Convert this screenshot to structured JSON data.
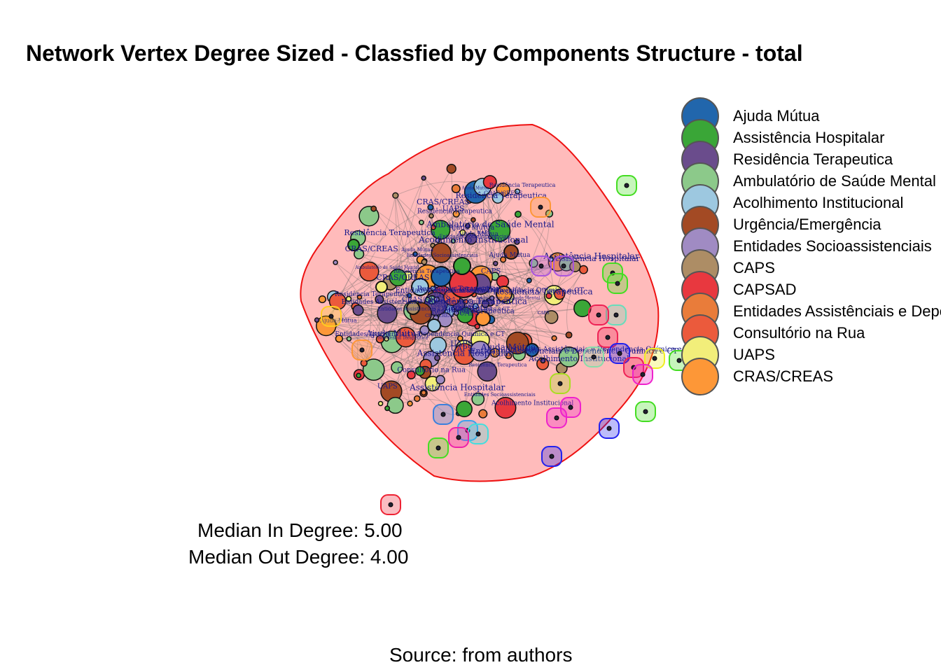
{
  "title": "Network Vertex Degree Sized - Classfied by Components Structure - total",
  "legend": [
    {
      "label": "Ajuda Mútua",
      "color": "#2166ac"
    },
    {
      "label": "Assistência Hospitalar",
      "color": "#3aa637"
    },
    {
      "label": "Residência Terapeutica",
      "color": "#6a4c8c"
    },
    {
      "label": "Ambulatório de Saúde Mental",
      "color": "#8cc98a"
    },
    {
      "label": "Acolhimento Institucional",
      "color": "#9dc8e0"
    },
    {
      "label": "Urgência/Emergência",
      "color": "#a34a24"
    },
    {
      "label": "Entidades Socioassistenciais",
      "color": "#a08bc3"
    },
    {
      "label": "CAPS",
      "color": "#ad8d65"
    },
    {
      "label": "CAPSAD",
      "color": "#e8383f"
    },
    {
      "label": "Entidades Assistênciais e Dependência Química e CT",
      "color": "#e97c3a"
    },
    {
      "label": "Consultório na Rua",
      "color": "#eb5a3c"
    },
    {
      "label": "UAPS",
      "color": "#f2ee7a"
    },
    {
      "label": "CRAS/CREAS",
      "color": "#fd9737"
    }
  ],
  "stats": {
    "median_in": "Median In Degree: 5.00",
    "median_out": "Median Out Degree: 4.00"
  },
  "source": "Source: from authors",
  "node_labels": [
    "Residência Terapeutica",
    "Residência Terapeutica",
    "Residência Terapeutica",
    "Assistência Hospitalar",
    "UAPS",
    "CRAS/CREAS",
    "CAPS",
    "Ambulatório de Saúde Mental",
    "Entidades Assistênciais e Dependência Química e CT",
    "Entidades Socioassistenciais",
    "Acolhimento Institucional",
    "Ajuda Mútua",
    "Ajuda Mútua",
    "Ajuda Mútua",
    "CRAS/CREAS",
    "UAPS",
    "Consultório na Rua",
    "Entidades Assistênciais e Dependência Química e CT"
  ]
}
